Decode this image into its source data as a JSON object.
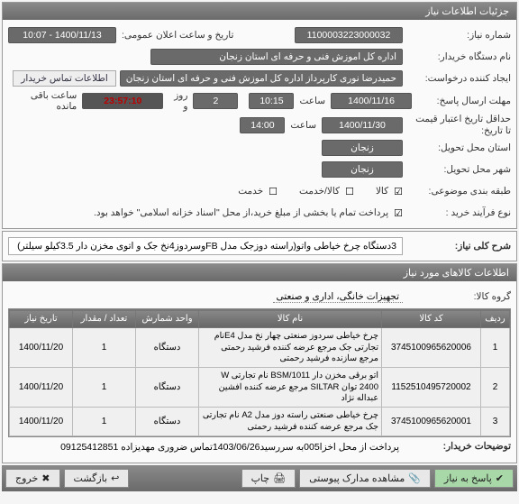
{
  "panel1": {
    "title": "جزئیات اطلاعات نیاز",
    "rows": {
      "req_no_label": "شماره نیاز:",
      "req_no": "1100003223000032",
      "announce_label": "تاریخ و ساعت اعلان عمومی:",
      "announce": "1400/11/13 - 10:07",
      "buyer_label": "نام دستگاه خریدار:",
      "buyer": "اداره کل اموزش فنی و حرفه ای استان زنجان",
      "creator_label": "ایجاد کننده درخواست:",
      "creator": "حمیدرضا نوری کارپرداز اداره کل اموزش فنی و حرفه ای استان زنجان",
      "contact_btn": "اطلاعات تماس خریدار",
      "deadline_label": "مهلت ارسال پاسخ:",
      "deadline_date": "1400/11/16",
      "time_label": "ساعت",
      "deadline_time": "10:15",
      "days_label": "روز و",
      "days": "2",
      "countdown": "23:57:10",
      "remain_label": "ساعت باقی مانده",
      "validity_label": "حداقل تاریخ اعتبار قیمت تا تاریخ:",
      "validity_date": "1400/11/30",
      "validity_time": "14:00",
      "province_label": "استان محل تحویل:",
      "province": "زنجان",
      "city_label": "شهر محل تحویل:",
      "city": "زنجان",
      "category_label": "طبقه بندی موضوعی:",
      "cat_goods": "کالا",
      "cat_goods_ck": "☑",
      "cat_service": "کالا/خدمت",
      "cat_service_ck": "☐",
      "cat_serv": "خدمت",
      "cat_serv_ck": "☐",
      "process_label": "نوع فرآیند خرید :",
      "process_note": "پرداخت تمام یا بخشی از مبلغ خرید،از محل \"اسناد خزانه اسلامی\" خواهد بود.",
      "process_ck": "☑"
    }
  },
  "panel2": {
    "title_label": "شرح کلی نیاز:",
    "title_value": "3دستگاه چرخ خیاطی واتو(راسته دوزجک مدل FBوسردوز4نخ جک و اتوی مخزن دار 3.5کیلو سیلتر)"
  },
  "panel3": {
    "title": "اطلاعات کالاهای مورد نیاز",
    "group_label": "گروه کالا:",
    "group_value": "تجهیزات خانگی، اداری و صنعتی",
    "table": {
      "headers": [
        "ردیف",
        "کد کالا",
        "نام کالا",
        "واحد شمارش",
        "تعداد / مقدار",
        "تاریخ نیاز"
      ],
      "rows": [
        [
          "1",
          "3745100965620006",
          "چرخ خیاطی سردوز صنعتی چهار نخ مدل E4نام تجارتی جک مرجع عرضه کننده فرشید رحمتی مرجع سازنده فرشید رحمتی",
          "دستگاه",
          "1",
          "1400/11/20"
        ],
        [
          "2",
          "1152510495720002",
          "اتو برقی مخزن دار BSM/1011 نام تجارتی W 2400 توان SILTAR مرجع عرضه کننده افشین عبداله نژاد",
          "دستگاه",
          "1",
          "1400/11/20"
        ],
        [
          "3",
          "3745100965620001",
          "چرخ خیاطی صنعتی راسته دوز مدل A2 نام تجارتی جک مرجع عرضه کننده فرشید رحمتی",
          "دستگاه",
          "1",
          "1400/11/20"
        ]
      ]
    },
    "desc_label": "توضیحات خریدار:",
    "desc_value": "پرداخت از محل اخزا005به سررسید1403/06/26تماس ضروری مهدیزاده 09125412851"
  },
  "footer": {
    "respond": "پاسخ به نیاز",
    "attach": "مشاهده مدارک پیوستی",
    "print": "چاپ",
    "back": "بازگشت",
    "exit": "خروج"
  }
}
